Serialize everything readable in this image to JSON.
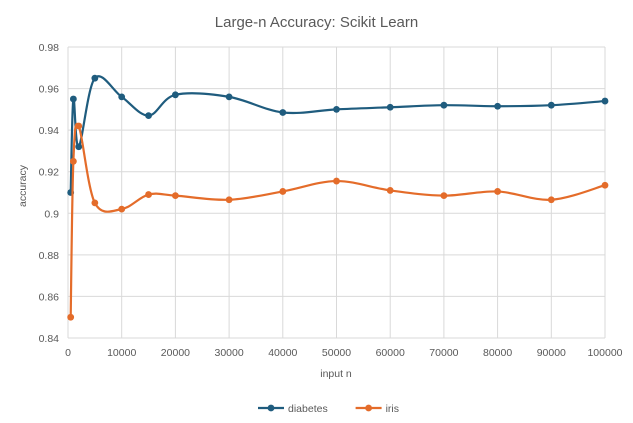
{
  "chart_data": {
    "type": "line",
    "title": "Large-n Accuracy: Scikit Learn",
    "xlabel": "input n",
    "ylabel": "accuracy",
    "xlim": [
      0,
      100000
    ],
    "ylim": [
      0.84,
      0.98
    ],
    "x_ticks": [
      0,
      10000,
      20000,
      30000,
      40000,
      50000,
      60000,
      70000,
      80000,
      90000,
      100000
    ],
    "x_tick_labels": [
      "0",
      "10000",
      "20000",
      "30000",
      "40000",
      "50000",
      "60000",
      "70000",
      "80000",
      "90000",
      "100000"
    ],
    "y_ticks": [
      0.84,
      0.86,
      0.88,
      0.9,
      0.92,
      0.94,
      0.96,
      0.98
    ],
    "y_tick_labels": [
      "0.84",
      "0.86",
      "0.88",
      "0.9",
      "0.92",
      "0.94",
      "0.96",
      "0.98"
    ],
    "grid": true,
    "legend_position": "bottom",
    "x": [
      500,
      1000,
      2000,
      5000,
      10000,
      15000,
      20000,
      30000,
      40000,
      50000,
      60000,
      70000,
      80000,
      90000,
      100000
    ],
    "series": [
      {
        "name": "diabetes",
        "color": "#1f5c7e",
        "values": [
          0.91,
          0.955,
          0.932,
          0.965,
          0.956,
          0.947,
          0.957,
          0.956,
          0.9485,
          0.95,
          0.951,
          0.952,
          0.9515,
          0.952,
          0.954
        ]
      },
      {
        "name": "iris",
        "color": "#e46c2a",
        "values": [
          0.85,
          0.925,
          0.942,
          0.905,
          0.902,
          0.909,
          0.9085,
          0.9065,
          0.9105,
          0.9155,
          0.911,
          0.9085,
          0.9105,
          0.9065,
          0.9135
        ]
      }
    ]
  }
}
